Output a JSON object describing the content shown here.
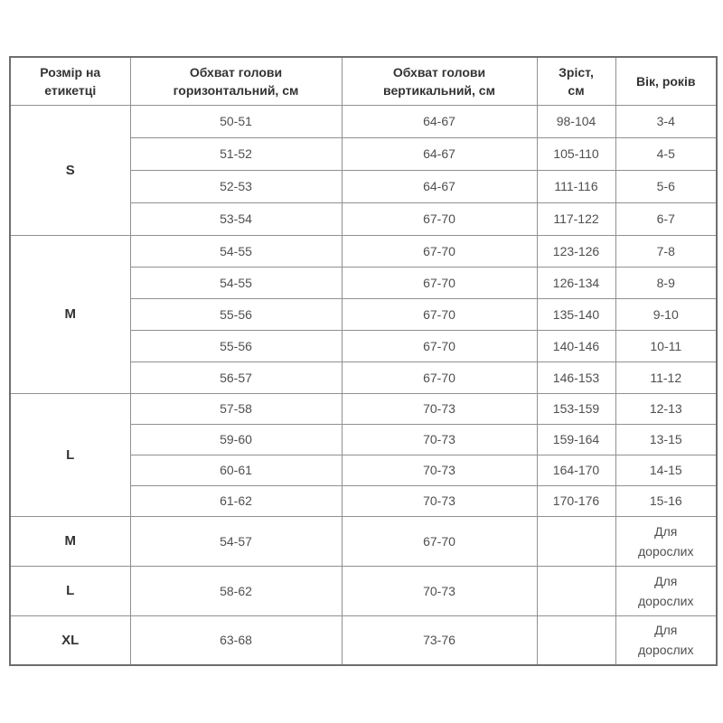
{
  "colors": {
    "border": "#909090",
    "outer_border": "#6e6e6e",
    "header_text": "#333333",
    "body_text": "#4f4f4f"
  },
  "table": {
    "headers": [
      [
        "Розмір на",
        "етикетці"
      ],
      [
        "Обхват голови",
        "горизонтальний, см"
      ],
      [
        "Обхват голови",
        "вертикальний, см"
      ],
      [
        "Зріст,",
        "см"
      ],
      [
        "Вік, років"
      ]
    ],
    "groups": [
      {
        "label": "S",
        "rows": [
          [
            "50-51",
            "64-67",
            "98-104",
            "3-4"
          ],
          [
            "51-52",
            "64-67",
            "105-110",
            "4-5"
          ],
          [
            "52-53",
            "64-67",
            "111-116",
            "5-6"
          ],
          [
            "53-54",
            "67-70",
            "117-122",
            "6-7"
          ]
        ]
      },
      {
        "label": "M",
        "rows": [
          [
            "54-55",
            "67-70",
            "123-126",
            "7-8"
          ],
          [
            "54-55",
            "67-70",
            "126-134",
            "8-9"
          ],
          [
            "55-56",
            "67-70",
            "135-140",
            "9-10"
          ],
          [
            "55-56",
            "67-70",
            "140-146",
            "10-11"
          ],
          [
            "56-57",
            "67-70",
            "146-153",
            "11-12"
          ]
        ]
      },
      {
        "label": "L",
        "rows": [
          [
            "57-58",
            "70-73",
            "153-159",
            "12-13"
          ],
          [
            "59-60",
            "70-73",
            "159-164",
            "13-15"
          ],
          [
            "60-61",
            "70-73",
            "164-170",
            "14-15"
          ],
          [
            "61-62",
            "70-73",
            "170-176",
            "15-16"
          ]
        ]
      }
    ],
    "adults": [
      {
        "label": "M",
        "horizontal": "54-57",
        "vertical": "67-70",
        "height": "",
        "age": "Для дорослих"
      },
      {
        "label": "L",
        "horizontal": "58-62",
        "vertical": "70-73",
        "height": "",
        "age": "Для дорослих"
      },
      {
        "label": "XL",
        "horizontal": "63-68",
        "vertical": "73-76",
        "height": "",
        "age": "Для дорослих"
      }
    ]
  }
}
